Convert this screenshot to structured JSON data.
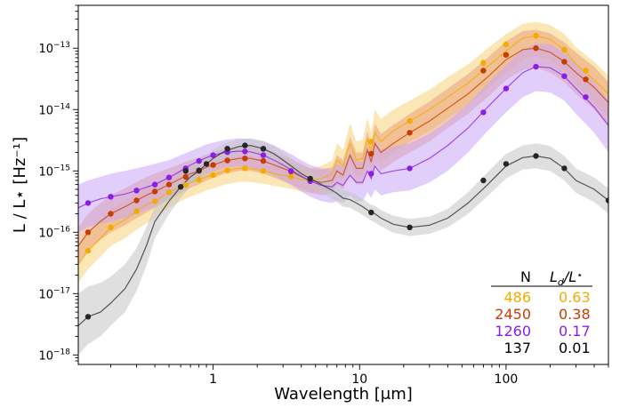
{
  "chart_data": {
    "type": "line",
    "xlabel": "Wavelength [μm]",
    "ylabel": "L / L⋆ [Hz⁻¹]",
    "xscale": "log",
    "yscale": "log",
    "xlim": [
      0.12,
      500
    ],
    "ylim": [
      7e-19,
      5e-13
    ],
    "x_ticks": [
      {
        "value": 1,
        "label": "1"
      },
      {
        "value": 10,
        "label": "10"
      },
      {
        "value": 100,
        "label": "100"
      }
    ],
    "y_ticks": [
      {
        "value": 1e-18,
        "base": "10",
        "exp": "−18"
      },
      {
        "value": 1e-17,
        "base": "10",
        "exp": "−17"
      },
      {
        "value": 1e-16,
        "base": "10",
        "exp": "−16"
      },
      {
        "value": 1e-15,
        "base": "10",
        "exp": "−15"
      },
      {
        "value": 1e-14,
        "base": "10",
        "exp": "−14"
      },
      {
        "value": 1e-13,
        "base": "10",
        "exp": "−13"
      }
    ],
    "grid": false,
    "legend": {
      "placement": "lower-right",
      "header_n": "N",
      "header_ratio_main": "L",
      "header_ratio_sub": "d",
      "header_ratio_tail": "/L",
      "header_ratio_star": "⋆",
      "rows": [
        {
          "n": "486",
          "ratio": "0.63",
          "color": "#f0ad00"
        },
        {
          "n": "2450",
          "ratio": "0.38",
          "color": "#c93c00"
        },
        {
          "n": "1260",
          "ratio": "0.17",
          "color": "#8a1ee6"
        },
        {
          "n": "137",
          "ratio": "0.01",
          "color": "#000000"
        }
      ]
    },
    "series": [
      {
        "color": "#f0ad00",
        "band_color": "#f8d27a",
        "x": [
          0.12,
          0.14,
          0.17,
          0.2,
          0.25,
          0.3,
          0.35,
          0.4,
          0.5,
          0.6,
          0.7,
          0.8,
          0.9,
          1.0,
          1.2,
          1.5,
          1.8,
          2.2,
          2.6,
          3.0,
          3.5,
          4.0,
          4.6,
          5.5,
          6.5,
          7.0,
          7.7,
          8.6,
          9.5,
          10.5,
          11.3,
          12.0,
          12.7,
          14,
          17,
          22,
          30,
          40,
          55,
          75,
          100,
          130,
          160,
          200,
          250,
          300,
          400,
          500
        ],
        "y": [
          3e-17,
          5e-17,
          8e-17,
          1.2e-16,
          1.6e-16,
          2.2e-16,
          2.8e-16,
          3.2e-16,
          4.5e-16,
          5.5e-16,
          6.5e-16,
          7.2e-16,
          8e-16,
          8.5e-16,
          1e-15,
          1.1e-15,
          1.1e-15,
          1e-15,
          9e-16,
          8.5e-16,
          8e-16,
          7.2e-16,
          7e-16,
          7.5e-16,
          9e-16,
          1.5e-15,
          1.2e-15,
          2.8e-15,
          1.5e-15,
          1.6e-15,
          3.3e-15,
          2e-15,
          4.2e-15,
          3e-15,
          4.5e-15,
          6.5e-15,
          1e-14,
          1.6e-14,
          2.7e-14,
          5e-14,
          9e-14,
          1.45e-13,
          1.6e-13,
          1.4e-13,
          9.5e-14,
          5.5e-14,
          3e-14,
          1.8e-14
        ],
        "y_lo": [
          1.5e-17,
          2.5e-17,
          4e-17,
          6e-17,
          8e-17,
          1.1e-16,
          1.4e-16,
          1.7e-16,
          2.5e-16,
          3.2e-16,
          3.8e-16,
          4.3e-16,
          4.8e-16,
          5.2e-16,
          6e-16,
          6.6e-16,
          6.6e-16,
          6.2e-16,
          5.7e-16,
          5.4e-16,
          5e-16,
          4.6e-16,
          4.4e-16,
          4.7e-16,
          5.5e-16,
          8e-16,
          7e-16,
          1.3e-15,
          8e-16,
          8.5e-16,
          1.5e-15,
          1e-15,
          1.8e-15,
          1.4e-15,
          2e-15,
          3e-15,
          4.5e-15,
          7e-15,
          1.2e-14,
          2.2e-14,
          4e-14,
          6.5e-14,
          7.5e-14,
          6.5e-14,
          4.4e-14,
          2.5e-14,
          1.3e-14,
          7.5e-15
        ],
        "y_hi": [
          6e-17,
          1e-16,
          1.6e-16,
          2.4e-16,
          3.2e-16,
          4.4e-16,
          5.6e-16,
          6.4e-16,
          8e-16,
          9.5e-16,
          1.1e-15,
          1.2e-15,
          1.3e-15,
          1.4e-15,
          1.6e-15,
          1.75e-15,
          1.75e-15,
          1.6e-15,
          1.45e-15,
          1.35e-15,
          1.3e-15,
          1.15e-15,
          1.1e-15,
          1.2e-15,
          1.5e-15,
          2.8e-15,
          2.2e-15,
          6e-15,
          3e-15,
          3.2e-15,
          7.5e-15,
          4.2e-15,
          1e-14,
          7e-15,
          1e-14,
          1.4e-14,
          2.1e-14,
          3.4e-14,
          5.5e-14,
          1e-13,
          1.7e-13,
          2.5e-13,
          2.7e-13,
          2.4e-13,
          1.7e-13,
          1.05e-13,
          6e-14,
          3.6e-14
        ],
        "points_x": [
          0.14,
          0.2,
          0.3,
          0.4,
          0.5,
          0.65,
          0.8,
          1.0,
          1.25,
          1.65,
          2.2,
          3.4,
          4.6,
          12,
          22,
          70,
          100,
          160,
          250,
          350
        ],
        "points_y": [
          5e-17,
          1.2e-16,
          2.2e-16,
          3.2e-16,
          4.5e-16,
          5.9e-16,
          7.2e-16,
          8.5e-16,
          1.02e-15,
          1.1e-15,
          1e-15,
          8.1e-16,
          7e-16,
          3e-15,
          6.5e-15,
          5.8e-14,
          1.15e-13,
          1.6e-13,
          9.5e-14,
          4.3e-14
        ]
      },
      {
        "color": "#c93c00",
        "band_color": "#e9a07a",
        "x": [
          0.12,
          0.14,
          0.17,
          0.2,
          0.25,
          0.3,
          0.35,
          0.4,
          0.5,
          0.6,
          0.7,
          0.8,
          0.9,
          1.0,
          1.2,
          1.5,
          1.8,
          2.2,
          2.6,
          3.0,
          3.5,
          4.0,
          4.6,
          5.5,
          6.5,
          7.0,
          7.7,
          8.6,
          9.5,
          10.5,
          11.3,
          12.0,
          12.7,
          14,
          17,
          22,
          30,
          40,
          55,
          75,
          100,
          130,
          160,
          200,
          250,
          300,
          400,
          500
        ],
        "y": [
          6e-17,
          1e-16,
          1.5e-16,
          2e-16,
          2.6e-16,
          3.3e-16,
          4e-16,
          4.6e-16,
          6e-16,
          7.5e-16,
          9e-16,
          1e-15,
          1.15e-15,
          1.25e-15,
          1.45e-15,
          1.6e-15,
          1.6e-15,
          1.45e-15,
          1.25e-15,
          1.1e-15,
          9.5e-16,
          8e-16,
          7e-16,
          6.5e-16,
          7e-16,
          1e-15,
          8.5e-16,
          1.8e-15,
          1.1e-15,
          1.1e-15,
          2.2e-15,
          1.4e-15,
          2.8e-15,
          2e-15,
          2.8e-15,
          4.2e-15,
          6.5e-15,
          1.05e-14,
          1.8e-14,
          3.4e-14,
          6.5e-14,
          9.5e-14,
          1e-13,
          8.6e-14,
          6e-14,
          4e-14,
          2.3e-14,
          1.3e-14
        ],
        "y_lo": [
          3e-17,
          5e-17,
          7.5e-17,
          1e-16,
          1.3e-16,
          1.7e-16,
          2.1e-16,
          2.5e-16,
          3.4e-16,
          4.3e-16,
          5.3e-16,
          6e-16,
          7e-16,
          7.7e-16,
          9e-16,
          1e-15,
          1e-15,
          9e-16,
          7.8e-16,
          6.8e-16,
          5.9e-16,
          5e-16,
          4.4e-16,
          4e-16,
          4.3e-16,
          6e-16,
          5e-16,
          9e-16,
          6e-16,
          6e-16,
          1.1e-15,
          7.5e-16,
          1.3e-15,
          1e-15,
          1.4e-15,
          2e-15,
          3e-15,
          5e-15,
          8.5e-15,
          1.6e-14,
          3e-14,
          4.4e-14,
          4.8e-14,
          4e-14,
          2.8e-14,
          1.8e-14,
          1e-14,
          5.5e-15
        ],
        "y_hi": [
          1.2e-16,
          2e-16,
          3e-16,
          4e-16,
          5.2e-16,
          6.6e-16,
          8e-16,
          9e-16,
          1.1e-15,
          1.3e-15,
          1.5e-15,
          1.65e-15,
          1.85e-15,
          2e-15,
          2.3e-15,
          2.5e-15,
          2.5e-15,
          2.3e-15,
          2e-15,
          1.75e-15,
          1.5e-15,
          1.3e-15,
          1.1e-15,
          1.05e-15,
          1.15e-15,
          1.8e-15,
          1.5e-15,
          3.6e-15,
          2e-15,
          2e-15,
          4.5e-15,
          2.6e-15,
          6e-15,
          4e-15,
          5.6e-15,
          8.5e-15,
          1.35e-14,
          2.2e-14,
          3.8e-14,
          7e-14,
          1.3e-13,
          1.9e-13,
          2e-13,
          1.75e-13,
          1.25e-13,
          8.5e-14,
          5e-14,
          2.8e-14
        ],
        "points_x": [
          0.14,
          0.2,
          0.3,
          0.4,
          0.5,
          0.65,
          0.8,
          1.0,
          1.25,
          1.65,
          2.2,
          3.4,
          4.6,
          12,
          22,
          70,
          100,
          160,
          250,
          350
        ],
        "points_y": [
          1e-16,
          2e-16,
          3.3e-16,
          4.6e-16,
          6e-16,
          8e-16,
          1e-15,
          1.25e-15,
          1.48e-15,
          1.6e-15,
          1.45e-15,
          9.8e-16,
          7e-16,
          1.9e-15,
          4.2e-15,
          4.3e-14,
          7.8e-14,
          1e-13,
          6e-14,
          3.1e-14
        ]
      },
      {
        "color": "#8a1ee6",
        "band_color": "#c9a6f6",
        "x": [
          0.12,
          0.14,
          0.17,
          0.2,
          0.25,
          0.3,
          0.35,
          0.4,
          0.5,
          0.6,
          0.7,
          0.8,
          0.9,
          1.0,
          1.2,
          1.5,
          1.8,
          2.2,
          2.6,
          3.0,
          3.5,
          4.0,
          4.6,
          5.5,
          6.5,
          7.0,
          7.7,
          8.6,
          9.5,
          10.5,
          11.3,
          12.0,
          12.7,
          14,
          17,
          22,
          30,
          40,
          55,
          75,
          100,
          130,
          160,
          200,
          250,
          300,
          400,
          500
        ],
        "y": [
          2.5e-16,
          3e-16,
          3.5e-16,
          3.8e-16,
          4.2e-16,
          4.8e-16,
          5.4e-16,
          6e-16,
          7.8e-16,
          1e-15,
          1.25e-15,
          1.45e-15,
          1.65e-15,
          1.8e-15,
          2e-15,
          2.1e-15,
          2.05e-15,
          1.8e-15,
          1.5e-15,
          1.25e-15,
          1e-15,
          8.2e-16,
          6.8e-16,
          5.8e-16,
          5.5e-16,
          6.5e-16,
          5.8e-16,
          8.5e-16,
          6.5e-16,
          6.5e-16,
          1e-15,
          7.5e-16,
          1.2e-15,
          9e-16,
          1e-15,
          1.1e-15,
          1.6e-15,
          2.6e-15,
          5e-15,
          1.1e-14,
          2.2e-14,
          4e-14,
          5e-14,
          4.8e-14,
          3.5e-14,
          2.2e-14,
          1.1e-14,
          5.5e-15
        ],
        "y_lo": [
          1e-16,
          1.2e-16,
          1.4e-16,
          1.5e-16,
          1.7e-16,
          2e-16,
          2.3e-16,
          2.6e-16,
          3.6e-16,
          5e-16,
          6.5e-16,
          8e-16,
          9.2e-16,
          1e-15,
          1.15e-15,
          1.2e-15,
          1.15e-15,
          1e-15,
          8.5e-16,
          7e-16,
          5.6e-16,
          4.6e-16,
          3.8e-16,
          3.2e-16,
          3e-16,
          3.3e-16,
          3e-16,
          4e-16,
          3.2e-16,
          3.2e-16,
          4.5e-16,
          3.6e-16,
          5e-16,
          4e-16,
          4.5e-16,
          4.8e-16,
          6.5e-16,
          1e-15,
          2e-15,
          4.5e-15,
          9e-15,
          1.6e-14,
          2e-14,
          1.9e-14,
          1.4e-14,
          8.5e-15,
          4.2e-15,
          2e-15
        ],
        "y_hi": [
          6e-16,
          7e-16,
          8e-16,
          9e-16,
          1e-15,
          1.1e-15,
          1.2e-15,
          1.3e-15,
          1.5e-15,
          1.8e-15,
          2.1e-15,
          2.4e-15,
          2.7e-15,
          2.9e-15,
          3.2e-15,
          3.4e-15,
          3.3e-15,
          3e-15,
          2.6e-15,
          2.2e-15,
          1.8e-15,
          1.5e-15,
          1.25e-15,
          1.1e-15,
          1.05e-15,
          1.3e-15,
          1.15e-15,
          2e-15,
          1.4e-15,
          1.4e-15,
          2.6e-15,
          1.7e-15,
          3.2e-15,
          2.2e-15,
          2.5e-15,
          2.8e-15,
          4e-15,
          6.5e-15,
          1.25e-14,
          2.7e-14,
          5.4e-14,
          9.5e-14,
          1.2e-13,
          1.15e-13,
          8.5e-14,
          5.4e-14,
          2.8e-14,
          1.4e-14
        ],
        "points_x": [
          0.14,
          0.2,
          0.3,
          0.4,
          0.5,
          0.65,
          0.8,
          1.0,
          1.25,
          1.65,
          2.2,
          3.4,
          4.6,
          12,
          22,
          70,
          100,
          160,
          250,
          350
        ],
        "points_y": [
          3e-16,
          3.8e-16,
          4.8e-16,
          6e-16,
          7.8e-16,
          1.1e-15,
          1.45e-15,
          1.8e-15,
          2.02e-15,
          2.08e-15,
          1.8e-15,
          1e-15,
          6.8e-16,
          9e-16,
          1.1e-15,
          9e-15,
          2.2e-14,
          5e-14,
          3.5e-14,
          1.6e-14
        ]
      },
      {
        "color": "#262626",
        "band_color": "#c4c4c4",
        "x": [
          0.12,
          0.14,
          0.17,
          0.2,
          0.25,
          0.3,
          0.35,
          0.4,
          0.5,
          0.6,
          0.7,
          0.8,
          0.9,
          1.0,
          1.2,
          1.5,
          1.8,
          2.2,
          2.6,
          3.0,
          3.5,
          4.0,
          4.6,
          5.5,
          6.5,
          7.0,
          7.7,
          8.6,
          9.5,
          10.5,
          11.3,
          12.0,
          12.7,
          14,
          17,
          22,
          30,
          40,
          55,
          75,
          100,
          130,
          160,
          200,
          250,
          300,
          400,
          500
        ],
        "y": [
          3e-18,
          4.2e-18,
          5e-18,
          7e-18,
          1.2e-17,
          2.5e-17,
          6e-17,
          1.5e-16,
          3.2e-16,
          5.5e-16,
          8e-16,
          1e-15,
          1.3e-15,
          1.6e-15,
          2.1e-15,
          2.5e-15,
          2.6e-15,
          2.3e-15,
          1.9e-15,
          1.5e-15,
          1.15e-15,
          9e-16,
          7.5e-16,
          6e-16,
          4.8e-16,
          4.3e-16,
          3.6e-16,
          3.4e-16,
          3e-16,
          2.6e-16,
          2.3e-16,
          2.1e-16,
          2e-16,
          1.7e-16,
          1.35e-16,
          1.2e-16,
          1.3e-16,
          1.7e-16,
          3e-16,
          6e-16,
          1.2e-15,
          1.65e-15,
          1.75e-15,
          1.6e-15,
          1.1e-15,
          7e-16,
          5e-16,
          3.3e-16
        ],
        "y_lo": [
          1e-18,
          1.5e-18,
          2e-18,
          3e-18,
          5e-18,
          1.1e-17,
          2.8e-17,
          8e-17,
          2e-16,
          3.6e-16,
          5.5e-16,
          7e-16,
          9e-16,
          1.1e-15,
          1.5e-15,
          1.8e-15,
          1.9e-15,
          1.7e-15,
          1.4e-15,
          1.1e-15,
          8.5e-16,
          6.6e-16,
          5.5e-16,
          4.4e-16,
          3.5e-16,
          3.1e-16,
          2.6e-16,
          2.5e-16,
          2.2e-16,
          1.9e-16,
          1.7e-16,
          1.55e-16,
          1.45e-16,
          1.25e-16,
          9.8e-17,
          8.7e-17,
          9.4e-17,
          1.2e-16,
          2e-16,
          3.9e-16,
          7.5e-16,
          1.05e-15,
          1.1e-15,
          1e-15,
          7e-16,
          4.4e-16,
          3.1e-16,
          2e-16
        ],
        "y_hi": [
          1e-17,
          1.3e-17,
          1.5e-17,
          1.9e-17,
          3e-17,
          5.5e-17,
          1.2e-16,
          2.6e-16,
          5e-16,
          8.2e-16,
          1.15e-15,
          1.4e-15,
          1.8e-15,
          2.2e-15,
          2.8e-15,
          3.3e-15,
          3.4e-15,
          3.1e-15,
          2.6e-15,
          2e-15,
          1.55e-15,
          1.2e-15,
          1e-15,
          8e-16,
          6.4e-16,
          5.8e-16,
          4.9e-16,
          4.6e-16,
          4e-16,
          3.5e-16,
          3.1e-16,
          2.8e-16,
          2.7e-16,
          2.3e-16,
          1.85e-16,
          1.65e-16,
          1.8e-16,
          2.4e-16,
          4.5e-16,
          9.5e-16,
          1.9e-15,
          2.6e-15,
          2.8e-15,
          2.55e-15,
          1.75e-15,
          1.1e-15,
          7.8e-16,
          5.2e-16
        ],
        "points_x": [
          0.14,
          0.6,
          0.65,
          0.8,
          0.9,
          1.25,
          1.65,
          2.2,
          4.6,
          12,
          22,
          70,
          100,
          160,
          250,
          500
        ],
        "points_y": [
          4.2e-18,
          5.5e-16,
          1e-15,
          1.02e-15,
          1.3e-15,
          2.3e-15,
          2.6e-15,
          2.3e-15,
          7.5e-16,
          2.1e-16,
          1.2e-16,
          7e-16,
          1.3e-15,
          1.75e-15,
          1.1e-15,
          3.3e-16
        ]
      }
    ]
  }
}
